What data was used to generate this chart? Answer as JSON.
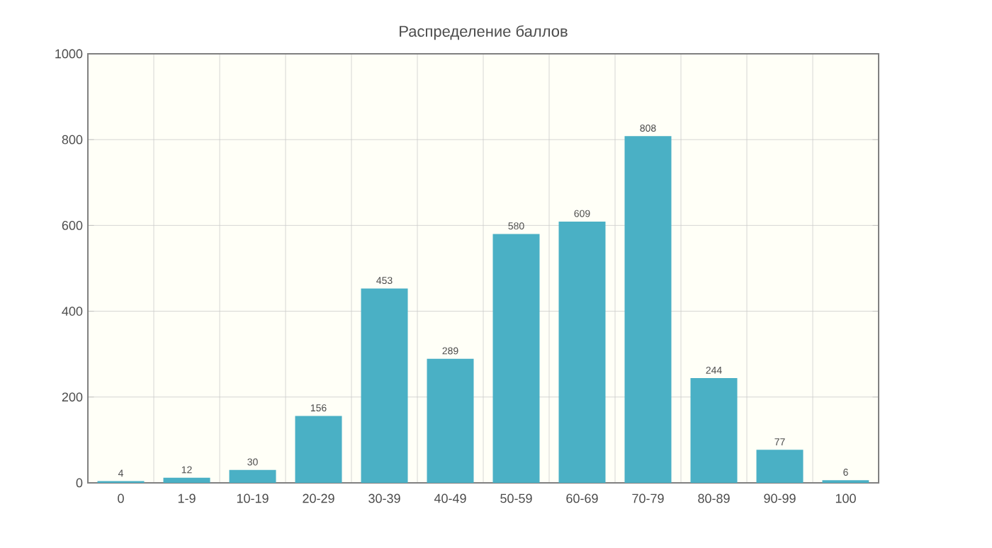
{
  "chart_data": {
    "type": "bar",
    "title": "Распределение баллов",
    "categories": [
      "0",
      "1-9",
      "10-19",
      "20-29",
      "30-39",
      "40-49",
      "50-59",
      "60-69",
      "70-79",
      "80-89",
      "90-99",
      "100"
    ],
    "values": [
      4,
      12,
      30,
      156,
      453,
      289,
      580,
      609,
      808,
      244,
      77,
      6
    ],
    "color": "#4ab0c5",
    "ylim": [
      0,
      1000
    ],
    "yticks": [
      0,
      200,
      400,
      600,
      800,
      1000
    ],
    "grid": true,
    "data_labels": true
  }
}
